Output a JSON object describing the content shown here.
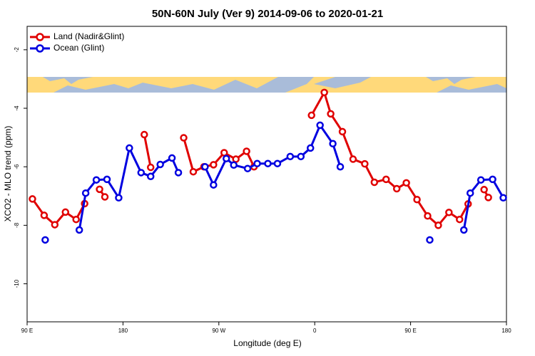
{
  "chart_data": {
    "type": "line",
    "title": "50N-60N July (Ver 9)   2014-09-06 to 2020-01-21",
    "x_label": "Longitude (deg E)",
    "y_label": "XCO2 - MLO trend (ppm)",
    "xlim": [
      90,
      540
    ],
    "xticks": [
      {
        "value": 90,
        "label": "90 E"
      },
      {
        "value": 180,
        "label": "180"
      },
      {
        "value": 270,
        "label": "90 W"
      },
      {
        "value": 360,
        "label": "0"
      },
      {
        "value": 450,
        "label": "90 E"
      },
      {
        "value": 540,
        "label": "180"
      }
    ],
    "ylim": [
      -11.3,
      -1.2
    ],
    "yticks": [
      -10,
      -8,
      -6,
      -4,
      -2
    ],
    "legend": "top-left",
    "series": [
      {
        "name": "Land (Nadir&Glint)",
        "color": "#e00000",
        "x": [
          95,
          106,
          116,
          126,
          136,
          144,
          null,
          158,
          163,
          null,
          200,
          206,
          null,
          237,
          246,
          256,
          265,
          275,
          286,
          296,
          303,
          null,
          357,
          369,
          375,
          386,
          396,
          407,
          416,
          427,
          437,
          446,
          456,
          466,
          476,
          486,
          496,
          504,
          null,
          519,
          523
        ],
        "values": [
          -7.1,
          -7.66,
          -7.98,
          -7.55,
          -7.8,
          -7.26,
          null,
          -6.77,
          -7.03,
          null,
          -4.9,
          -6.02,
          null,
          -5.01,
          -6.17,
          -6.0,
          -5.93,
          -5.52,
          -5.74,
          -5.47,
          -6.0,
          null,
          -4.24,
          -3.46,
          -4.19,
          -4.8,
          -5.74,
          -5.9,
          -6.53,
          -6.43,
          -6.75,
          -6.55,
          -7.12,
          -7.68,
          -8.0,
          -7.56,
          -7.8,
          -7.27,
          null,
          -6.78,
          -7.05
        ]
      },
      {
        "name": "Ocean (Glint)",
        "color": "#0000e0",
        "x": [
          107,
          null,
          139,
          145,
          155,
          165,
          176,
          186,
          197,
          206,
          215,
          226,
          232,
          null,
          257,
          265,
          277,
          284,
          297,
          306,
          316,
          325,
          337,
          347,
          356,
          365,
          377,
          384,
          null,
          468,
          null,
          500,
          506,
          516,
          527,
          537
        ],
        "values": [
          -8.5,
          null,
          -8.16,
          -6.9,
          -6.45,
          -6.43,
          -7.06,
          -5.36,
          -6.2,
          -6.33,
          -5.92,
          -5.7,
          -6.2,
          null,
          -6.0,
          -6.62,
          -5.72,
          -5.94,
          -6.06,
          -5.89,
          -5.89,
          -5.89,
          -5.65,
          -5.65,
          -5.36,
          -4.58,
          -5.21,
          -6.0,
          null,
          -8.5,
          null,
          -8.16,
          -6.9,
          -6.45,
          -6.43,
          -7.06
        ]
      }
    ]
  }
}
